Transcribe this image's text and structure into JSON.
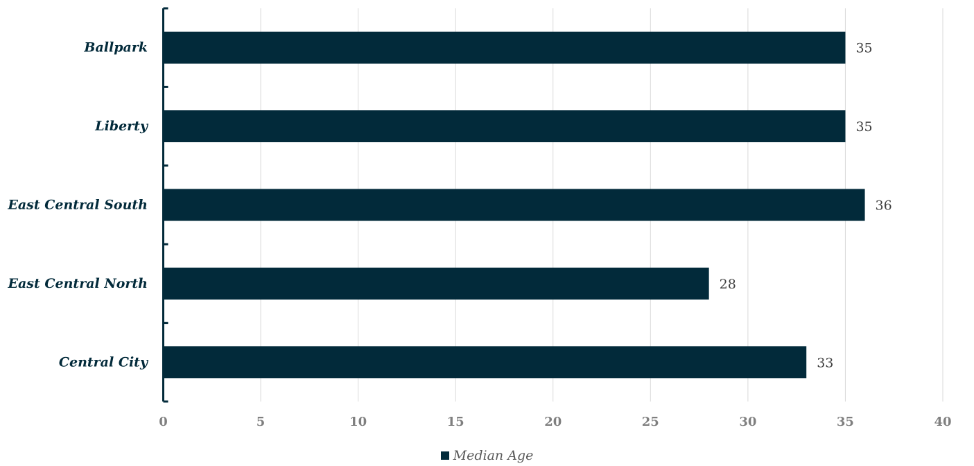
{
  "chart_data": {
    "type": "bar",
    "orientation": "horizontal",
    "categories": [
      "Ballpark",
      "Liberty",
      "East Central South",
      "East Central North",
      "Central City"
    ],
    "series": [
      {
        "name": "Median Age",
        "values": [
          35,
          35,
          36,
          28,
          33
        ]
      }
    ],
    "xlim": [
      0,
      40
    ],
    "x_ticks": [
      0,
      5,
      10,
      15,
      20,
      25,
      30,
      35,
      40
    ],
    "grid": true,
    "legend_position": "bottom",
    "colors": {
      "bar": "#022a3a",
      "grid": "#d9d9d9",
      "axis": "#022a3a"
    }
  }
}
